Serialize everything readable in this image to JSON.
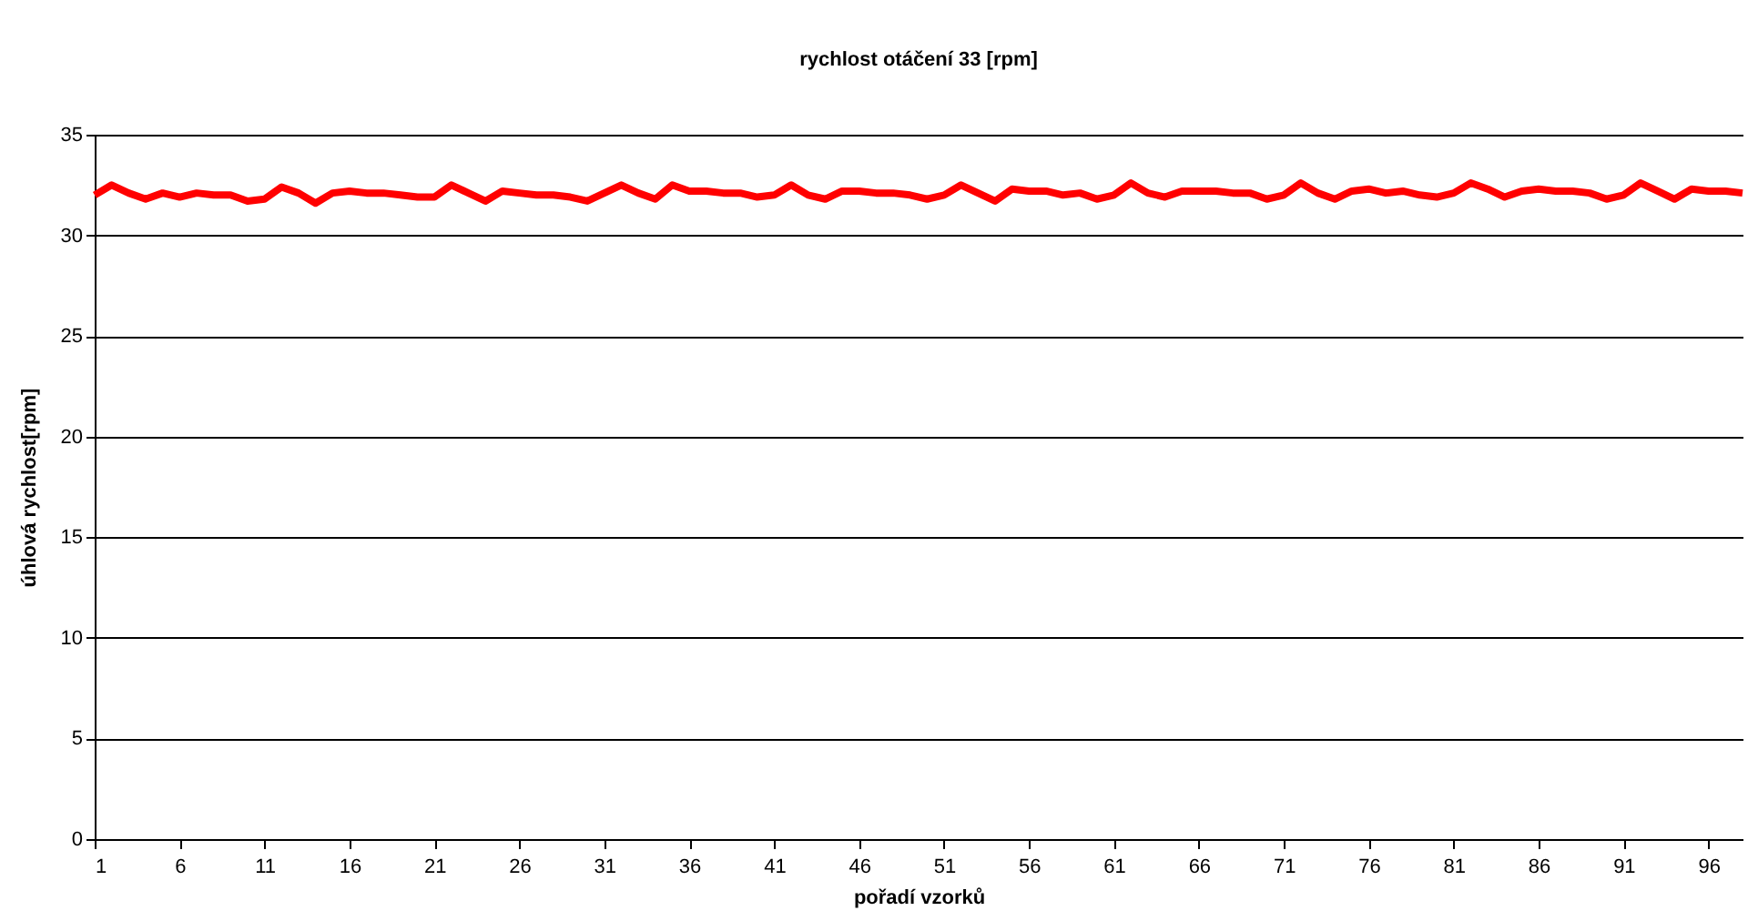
{
  "chart_data": {
    "type": "line",
    "title": "rychlost otáčení 33 [rpm]",
    "xlabel": "pořadí vzorků",
    "ylabel": "úhlová rychlost[rpm]",
    "x": [
      1,
      2,
      3,
      4,
      5,
      6,
      7,
      8,
      9,
      10,
      11,
      12,
      13,
      14,
      15,
      16,
      17,
      18,
      19,
      20,
      21,
      22,
      23,
      24,
      25,
      26,
      27,
      28,
      29,
      30,
      31,
      32,
      33,
      34,
      35,
      36,
      37,
      38,
      39,
      40,
      41,
      42,
      43,
      44,
      45,
      46,
      47,
      48,
      49,
      50,
      51,
      52,
      53,
      54,
      55,
      56,
      57,
      58,
      59,
      60,
      61,
      62,
      63,
      64,
      65,
      66,
      67,
      68,
      69,
      70,
      71,
      72,
      73,
      74,
      75,
      76,
      77,
      78,
      79,
      80,
      81,
      82,
      83,
      84,
      85,
      86,
      87,
      88,
      89,
      90,
      91,
      92,
      93,
      94,
      95,
      96,
      97,
      98
    ],
    "series": [
      {
        "color": "#ff0000",
        "values": [
          32.0,
          32.5,
          32.1,
          31.8,
          32.1,
          31.9,
          32.1,
          32.0,
          32.0,
          31.7,
          31.8,
          32.4,
          32.1,
          31.6,
          32.1,
          32.2,
          32.1,
          32.1,
          32.0,
          31.9,
          31.9,
          32.5,
          32.1,
          31.7,
          32.2,
          32.1,
          32.0,
          32.0,
          31.9,
          31.7,
          32.1,
          32.5,
          32.1,
          31.8,
          32.5,
          32.2,
          32.2,
          32.1,
          32.1,
          31.9,
          32.0,
          32.5,
          32.0,
          31.8,
          32.2,
          32.2,
          32.1,
          32.1,
          32.0,
          31.8,
          32.0,
          32.5,
          32.1,
          31.7,
          32.3,
          32.2,
          32.2,
          32.0,
          32.1,
          31.8,
          32.0,
          32.6,
          32.1,
          31.9,
          32.2,
          32.2,
          32.2,
          32.1,
          32.1,
          31.8,
          32.0,
          32.6,
          32.1,
          31.8,
          32.2,
          32.3,
          32.1,
          32.2,
          32.0,
          31.9,
          32.1,
          32.6,
          32.3,
          31.9,
          32.2,
          32.3,
          32.2,
          32.2,
          32.1,
          31.8,
          32.0,
          32.6,
          32.2,
          31.8,
          32.3,
          32.2,
          32.2,
          32.1
        ]
      }
    ],
    "xlim": [
      1,
      98
    ],
    "xticks": [
      1,
      6,
      11,
      16,
      21,
      26,
      31,
      36,
      41,
      46,
      51,
      56,
      61,
      66,
      71,
      76,
      81,
      86,
      91,
      96
    ],
    "ylim": [
      0,
      35
    ],
    "yticks": [
      0,
      5,
      10,
      15,
      20,
      25,
      30,
      35
    ],
    "grid": "y",
    "marker": "none",
    "line_style": "solid"
  }
}
